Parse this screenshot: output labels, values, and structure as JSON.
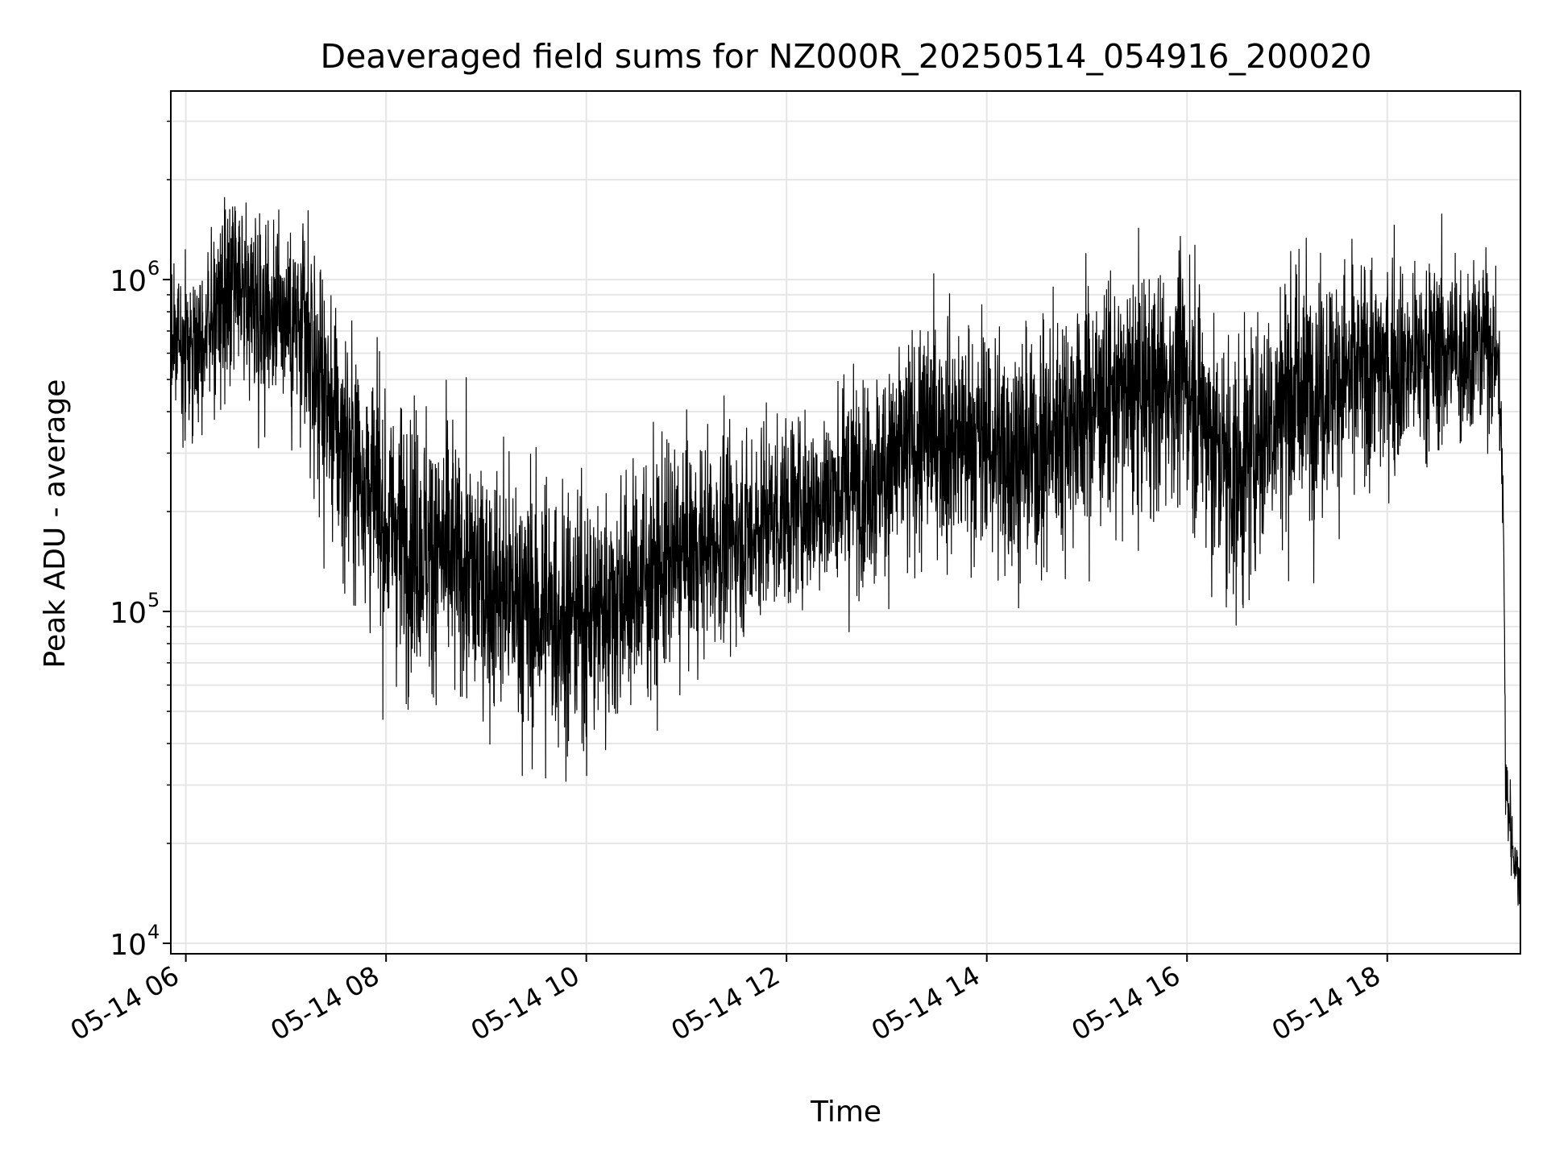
{
  "chart_data": {
    "type": "line",
    "title": "Deaveraged field sums for NZ000R_20250514_054916_200020",
    "xlabel": "Time",
    "ylabel": "Peak ADU - average",
    "yscale": "log",
    "xlim_hours": [
      5.85,
      19.33
    ],
    "ylim": [
      9300,
      3700000
    ],
    "grid": true,
    "line_color": "#000000",
    "x_ticks": [
      {
        "hour": 6,
        "label": "05-14 06"
      },
      {
        "hour": 8,
        "label": "05-14 08"
      },
      {
        "hour": 10,
        "label": "05-14 10"
      },
      {
        "hour": 12,
        "label": "05-14 12"
      },
      {
        "hour": 14,
        "label": "05-14 14"
      },
      {
        "hour": 16,
        "label": "05-14 16"
      },
      {
        "hour": 18,
        "label": "05-14 18"
      }
    ],
    "y_ticks": [
      {
        "exp": 4,
        "label": "10",
        "sup": "4"
      },
      {
        "exp": 5,
        "label": "10",
        "sup": "5"
      },
      {
        "exp": 6,
        "label": "10",
        "sup": "6"
      }
    ],
    "envelope": {
      "description_hours": [
        5.85,
        6.0,
        6.5,
        7.0,
        7.5,
        8.0,
        8.5,
        9.0,
        9.5,
        10.0,
        10.5,
        11.0,
        11.5,
        12.0,
        12.5,
        13.0,
        13.5,
        14.0,
        14.5,
        15.0,
        15.5,
        16.0,
        16.3,
        16.5,
        17.0,
        17.5,
        18.0,
        18.5,
        19.0,
        19.1,
        19.18,
        19.25,
        19.33
      ],
      "median": [
        700000,
        600000,
        900000,
        800000,
        350000,
        180000,
        150000,
        120000,
        100000,
        95000,
        120000,
        150000,
        170000,
        200000,
        230000,
        270000,
        350000,
        320000,
        300000,
        420000,
        450000,
        500000,
        300000,
        250000,
        450000,
        500000,
        550000,
        600000,
        650000,
        600000,
        30000,
        20000,
        14000
      ],
      "spread_decades": [
        0.3,
        0.35,
        0.45,
        0.45,
        0.6,
        0.6,
        0.6,
        0.6,
        0.6,
        0.55,
        0.55,
        0.5,
        0.45,
        0.45,
        0.45,
        0.5,
        0.55,
        0.55,
        0.55,
        0.55,
        0.55,
        0.55,
        0.6,
        0.6,
        0.6,
        0.55,
        0.5,
        0.45,
        0.4,
        0.3,
        0.25,
        0.2,
        0.1
      ]
    }
  }
}
